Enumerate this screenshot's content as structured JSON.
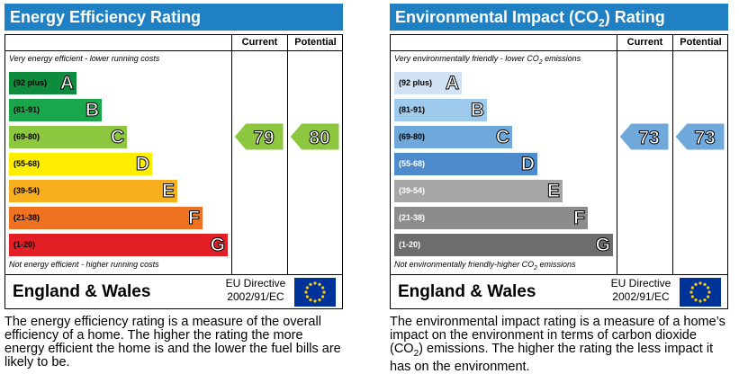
{
  "energy": {
    "title": "Energy Efficiency Rating",
    "col_current": "Current",
    "col_potential": "Potential",
    "top_note": "Very energy efficient - lower running costs",
    "bottom_note": "Not energy efficient - higher running costs",
    "bands": [
      {
        "range": "(92 plus)",
        "letter": "A",
        "color": "#0f8b3d"
      },
      {
        "range": "(81-91)",
        "letter": "B",
        "color": "#1aa64a"
      },
      {
        "range": "(69-80)",
        "letter": "C",
        "color": "#8dc63f"
      },
      {
        "range": "(55-68)",
        "letter": "D",
        "color": "#ffed00"
      },
      {
        "range": "(39-54)",
        "letter": "E",
        "color": "#f7af1d"
      },
      {
        "range": "(21-38)",
        "letter": "F",
        "color": "#ef7222"
      },
      {
        "range": "(1-20)",
        "letter": "G",
        "color": "#e31e25"
      }
    ],
    "current": "79",
    "potential": "80",
    "rating_color": "#8dc63f",
    "region": "England & Wales",
    "directive_line1": "EU Directive",
    "directive_line2": "2002/91/EC",
    "description": "The energy efficiency rating is a measure of the overall efficiency of a home. The higher the rating the more energy efficient the home is and the lower the fuel bills are likely to be."
  },
  "environment": {
    "title_pre": "Environmental Impact (CO",
    "title_sub": "2",
    "title_post": ") Rating",
    "col_current": "Current",
    "col_potential": "Potential",
    "top_note_pre": "Very environmentally friendly - lower CO",
    "top_note_sub": "2",
    "top_note_post": " emissions",
    "bottom_note_pre": "Not environmentally friendly-higher CO",
    "bottom_note_sub": "2",
    "bottom_note_post": " emissions",
    "bands": [
      {
        "range": "(92 plus)",
        "letter": "A",
        "color": "#cfe3f4"
      },
      {
        "range": "(81-91)",
        "letter": "B",
        "color": "#9ecbed"
      },
      {
        "range": "(69-80)",
        "letter": "C",
        "color": "#6fa9dc"
      },
      {
        "range": "(55-68)",
        "letter": "D",
        "color": "#4d8bcd"
      },
      {
        "range": "(39-54)",
        "letter": "E",
        "color": "#a6a6a6"
      },
      {
        "range": "(21-38)",
        "letter": "F",
        "color": "#8c8c8c"
      },
      {
        "range": "(1-20)",
        "letter": "G",
        "color": "#6d6d6d"
      }
    ],
    "current": "73",
    "potential": "73",
    "rating_color": "#6fa9dc",
    "region": "England & Wales",
    "directive_line1": "EU Directive",
    "directive_line2": "2002/91/EC",
    "desc_pre": "The environmental impact rating is a measure of a home’s impact on the environment in terms of carbon dioxide (CO",
    "desc_sub": "2",
    "desc_post": ") emissions. The higher the rating the less impact it has on the environment."
  }
}
